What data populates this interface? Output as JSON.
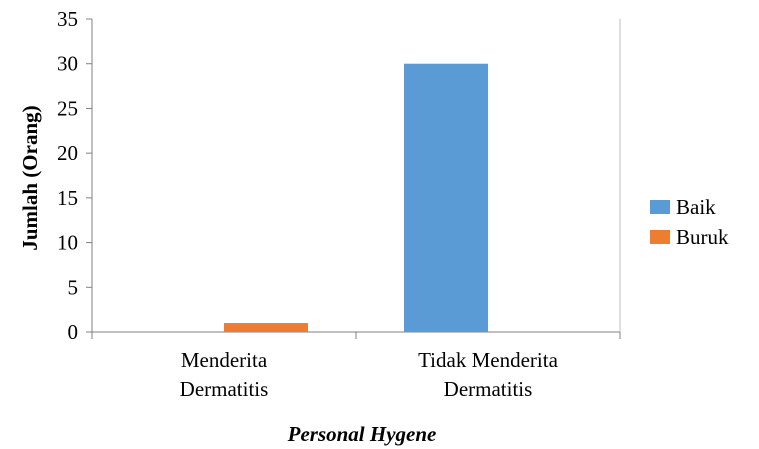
{
  "chart_data": {
    "type": "bar",
    "categories": [
      [
        "Menderita",
        "Dermatitis"
      ],
      [
        "Tidak Menderita",
        "Dermatitis"
      ]
    ],
    "series": [
      {
        "name": "Baik",
        "values": [
          0,
          30
        ],
        "color": "#5b9bd5"
      },
      {
        "name": "Buruk",
        "values": [
          1,
          0
        ],
        "color": "#ed7d31"
      }
    ],
    "xlabel": "Personal Hygene",
    "ylabel": "Jumlah (Orang)",
    "ylim": [
      0,
      35
    ],
    "yticks": [
      0,
      5,
      10,
      15,
      20,
      25,
      30,
      35
    ],
    "grid": false,
    "legend_position": "right"
  }
}
